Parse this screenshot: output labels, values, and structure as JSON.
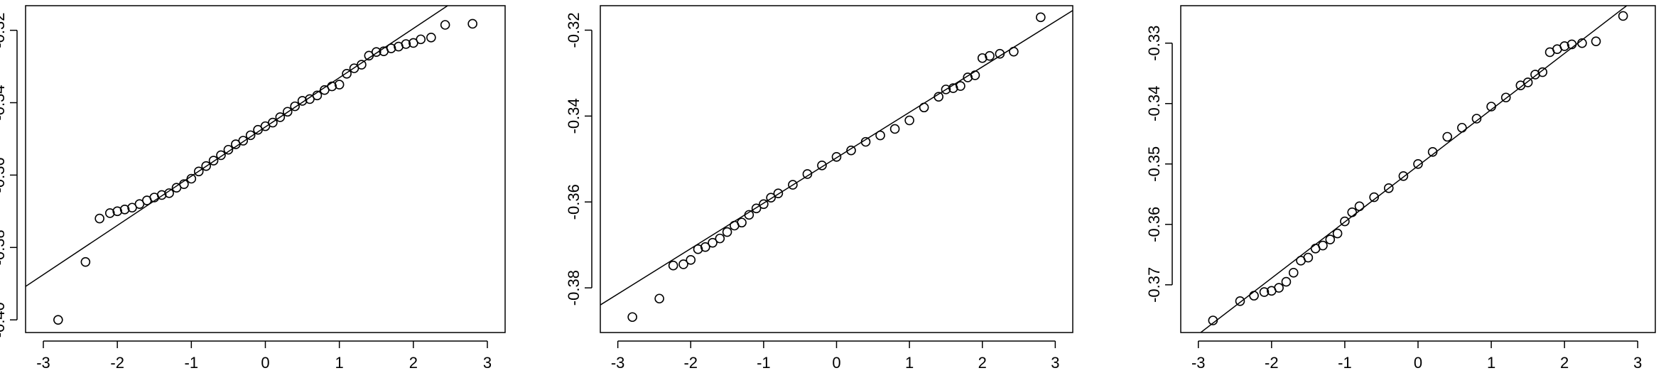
{
  "chart_data": [
    {
      "type": "scatter",
      "color": "#000000",
      "x": [
        -2.8,
        -2.43,
        -2.24,
        -2.1,
        -2.0,
        -1.9,
        -1.8,
        -1.7,
        -1.6,
        -1.5,
        -1.4,
        -1.3,
        -1.2,
        -1.1,
        -1.0,
        -0.9,
        -0.8,
        -0.7,
        -0.6,
        -0.5,
        -0.4,
        -0.3,
        -0.2,
        -0.1,
        0,
        0.1,
        0.2,
        0.3,
        0.4,
        0.5,
        0.6,
        0.7,
        0.8,
        0.9,
        1.0,
        1.1,
        1.2,
        1.3,
        1.4,
        1.5,
        1.6,
        1.7,
        1.8,
        1.9,
        2.0,
        2.1,
        2.24,
        2.43,
        2.8
      ],
      "values": [
        -0.4,
        -0.384,
        -0.372,
        -0.3705,
        -0.37,
        -0.3695,
        -0.369,
        -0.368,
        -0.367,
        -0.3662,
        -0.3655,
        -0.365,
        -0.3635,
        -0.3625,
        -0.361,
        -0.359,
        -0.3575,
        -0.356,
        -0.3545,
        -0.353,
        -0.3515,
        -0.3505,
        -0.349,
        -0.3475,
        -0.3465,
        -0.3455,
        -0.344,
        -0.3425,
        -0.341,
        -0.3395,
        -0.339,
        -0.338,
        -0.3365,
        -0.3355,
        -0.335,
        -0.332,
        -0.3305,
        -0.3295,
        -0.327,
        -0.326,
        -0.3258,
        -0.325,
        -0.3245,
        -0.3238,
        -0.3235,
        -0.3225,
        -0.322,
        -0.3185,
        -0.3182
      ],
      "reference_line": {
        "intercept": -0.3467,
        "slope": 0.0136
      },
      "xlim": [
        -3.24,
        3.24
      ],
      "xticks": [
        -3,
        -2,
        -1,
        0,
        1,
        2,
        3
      ],
      "ylim": [
        -0.4035,
        -0.3132
      ],
      "yticks": [
        {
          "value": -0.4,
          "label": "-0.40"
        },
        -0.38,
        -0.36,
        -0.34,
        -0.32
      ]
    },
    {
      "type": "scatter",
      "color": "#000000",
      "x": [
        -2.8,
        -2.43,
        -2.24,
        -2.1,
        -2.0,
        -1.9,
        -1.8,
        -1.7,
        -1.6,
        -1.5,
        -1.4,
        -1.3,
        -1.2,
        -1.1,
        -1.0,
        -0.9,
        -0.8,
        -0.6,
        -0.4,
        -0.2,
        0,
        0.2,
        0.4,
        0.6,
        0.8,
        1.0,
        1.2,
        1.4,
        1.5,
        1.6,
        1.7,
        1.8,
        1.9,
        2.0,
        2.1,
        2.24,
        2.43,
        2.8
      ],
      "values": [
        -0.3868,
        -0.3825,
        -0.3748,
        -0.3745,
        -0.3735,
        -0.371,
        -0.3705,
        -0.3695,
        -0.3685,
        -0.367,
        -0.3655,
        -0.3648,
        -0.363,
        -0.3615,
        -0.3605,
        -0.359,
        -0.358,
        -0.356,
        -0.3535,
        -0.3515,
        -0.3495,
        -0.348,
        -0.346,
        -0.3445,
        -0.343,
        -0.341,
        -0.338,
        -0.3355,
        -0.3338,
        -0.3335,
        -0.333,
        -0.331,
        -0.3305,
        -0.3265,
        -0.326,
        -0.3255,
        -0.325,
        -0.317
      ],
      "reference_line": {
        "intercept": -0.3497,
        "slope": 0.01058
      },
      "xlim": [
        -3.24,
        3.24
      ],
      "xticks": [
        -3,
        -2,
        -1,
        0,
        1,
        2,
        3
      ],
      "ylim": [
        -0.3904,
        -0.3143
      ],
      "yticks": [
        -0.38,
        -0.36,
        -0.34,
        -0.32
      ]
    },
    {
      "type": "scatter",
      "color": "#000000",
      "x": [
        -2.8,
        -2.43,
        -2.24,
        -2.1,
        -2.0,
        -1.9,
        -1.8,
        -1.7,
        -1.6,
        -1.5,
        -1.4,
        -1.3,
        -1.2,
        -1.1,
        -1.0,
        -0.9,
        -0.8,
        -0.6,
        -0.4,
        -0.2,
        0,
        0.2,
        0.4,
        0.6,
        0.8,
        1.0,
        1.2,
        1.4,
        1.5,
        1.6,
        1.7,
        1.8,
        1.9,
        2.0,
        2.1,
        2.24,
        2.43,
        2.8
      ],
      "values": [
        -0.3759,
        -0.3727,
        -0.3718,
        -0.3712,
        -0.371,
        -0.3705,
        -0.3695,
        -0.368,
        -0.366,
        -0.3655,
        -0.364,
        -0.3635,
        -0.3625,
        -0.3615,
        -0.3595,
        -0.358,
        -0.357,
        -0.3555,
        -0.354,
        -0.352,
        -0.35,
        -0.348,
        -0.3455,
        -0.344,
        -0.3425,
        -0.3405,
        -0.339,
        -0.337,
        -0.3365,
        -0.3352,
        -0.3348,
        -0.3315,
        -0.331,
        -0.3305,
        -0.3302,
        -0.33,
        -0.3297,
        -0.3255
      ],
      "reference_line": {
        "intercept": -0.3503,
        "slope": 0.0093
      },
      "xlim": [
        -3.24,
        3.24
      ],
      "xticks": [
        -3,
        -2,
        -1,
        0,
        1,
        2,
        3
      ],
      "ylim": [
        -0.3779,
        -0.3238
      ],
      "yticks": [
        -0.37,
        -0.36,
        -0.35,
        -0.34,
        -0.33
      ]
    }
  ]
}
